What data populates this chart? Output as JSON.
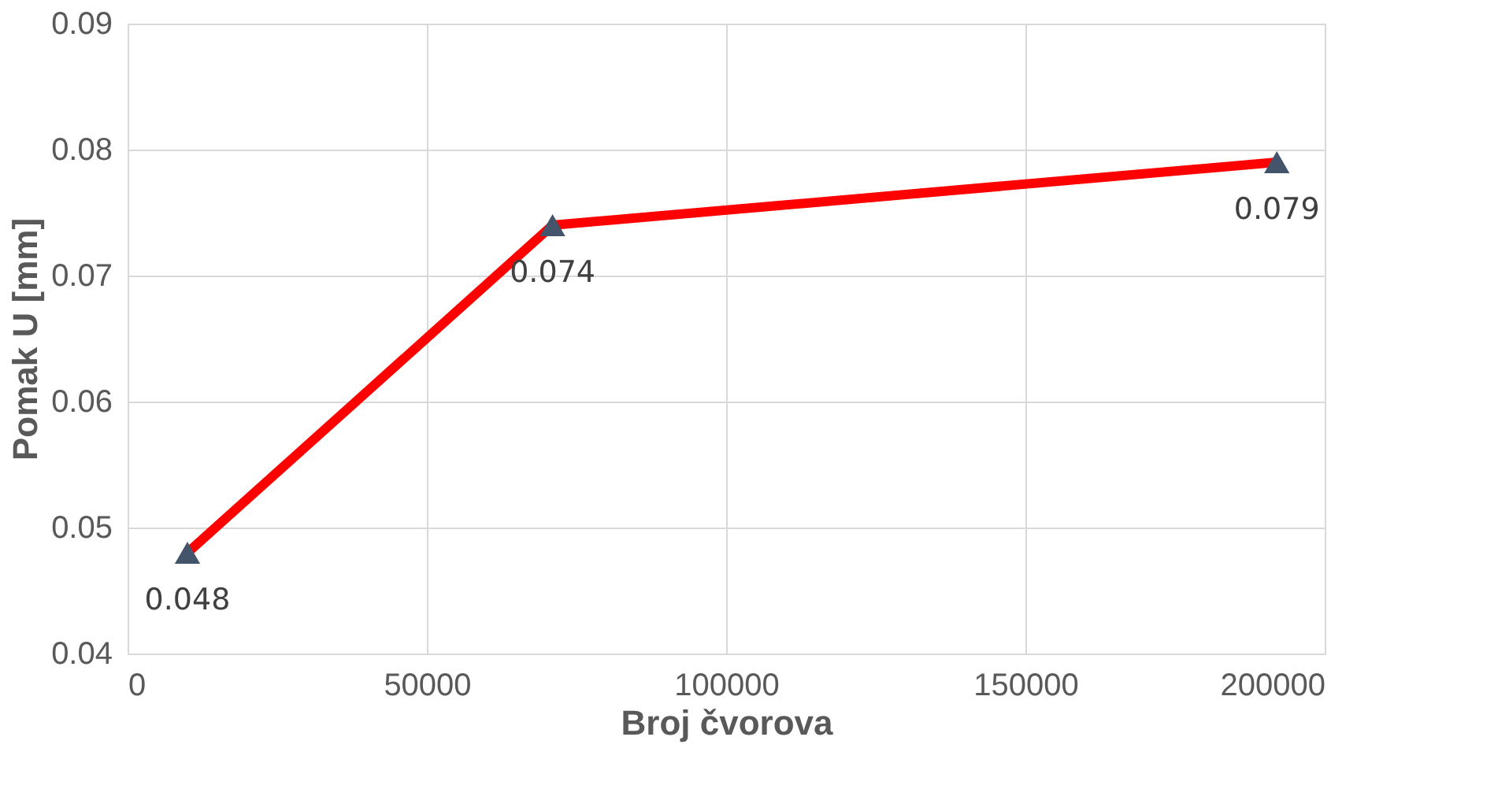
{
  "chart_data": {
    "type": "line",
    "xlabel": "Broj čvorova",
    "ylabel": "Pomak U [mm]",
    "x": [
      10000,
      71000,
      192000
    ],
    "series": [
      {
        "color": "#ff0000",
        "colors": [
          "#44546a",
          "#44546a",
          "#44546a"
        ],
        "values": [
          0.048,
          0.074,
          0.079
        ]
      }
    ],
    "marker": "triangle",
    "line_style": "solid",
    "data_labels": true,
    "xlim": [
      0,
      200000
    ],
    "xticks": [
      0,
      50000,
      100000,
      150000,
      200000
    ],
    "ylim": [
      0.04,
      0.09
    ],
    "yticks": [
      0.04,
      0.05,
      0.06,
      0.07,
      0.08,
      0.09
    ],
    "grid": true
  }
}
